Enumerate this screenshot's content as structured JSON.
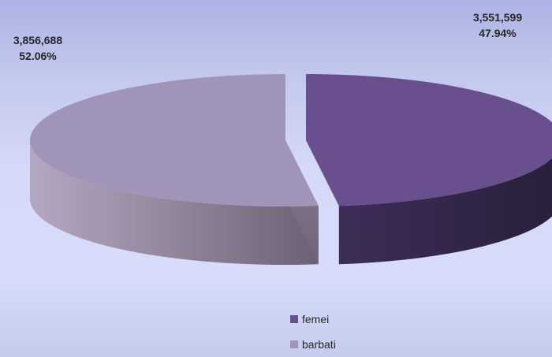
{
  "chart_data": {
    "type": "pie",
    "style": "3d-exploded",
    "categories": [
      "femei",
      "barbati"
    ],
    "values": [
      3551599,
      3856688
    ],
    "percent_labels": [
      "47.94%",
      "52.06%"
    ],
    "value_labels": [
      "3,551,599",
      "3,856,688"
    ],
    "colors": [
      "#6a4f8e",
      "#a094b8"
    ],
    "legend": {
      "position": "bottom",
      "entries": [
        "femei",
        "barbati"
      ]
    }
  }
}
